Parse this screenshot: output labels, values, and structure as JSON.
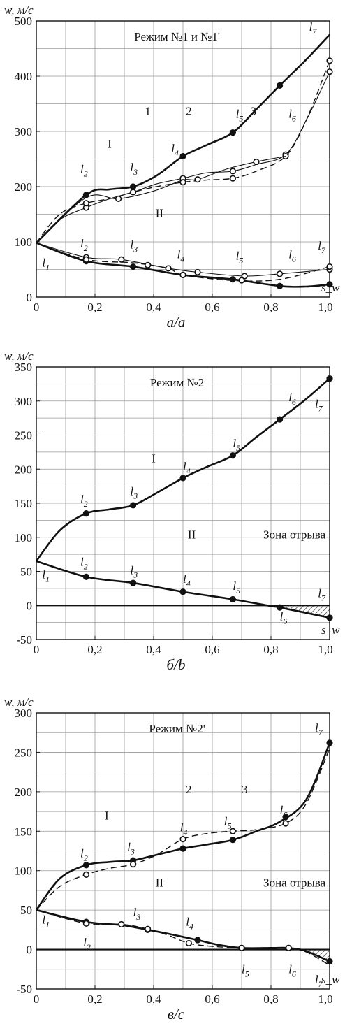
{
  "chart_data": [
    {
      "type": "line",
      "caption": "а/a",
      "mode_label": "Режим №1 и №1'",
      "ylabel": "w, м/с",
      "xlabel": "s_w",
      "xlim": [
        0,
        1.0
      ],
      "ylim": [
        0,
        500
      ],
      "xticks": [
        "0",
        "0,2",
        "0,4",
        "0,6",
        "0,8",
        "1,0"
      ],
      "yticks": [
        "0",
        "100",
        "200",
        "300",
        "400",
        "500"
      ],
      "xtick_values": [
        0,
        0.2,
        0.4,
        0.6,
        0.8,
        1.0
      ],
      "ytick_values": [
        0,
        100,
        200,
        300,
        400,
        500
      ],
      "grid": true,
      "series": [
        {
          "name": "I",
          "style": "solid-thick",
          "x": [
            0,
            0.17,
            0.25,
            0.33,
            0.41,
            0.5,
            0.58,
            0.67,
            0.75,
            0.83,
            0.92,
            1.0
          ],
          "y": [
            98,
            185,
            195,
            200,
            220,
            255,
            275,
            298,
            340,
            383,
            430,
            475
          ],
          "markers": [
            0.17,
            0.33,
            0.5,
            0.67,
            0.83
          ]
        },
        {
          "name": "1",
          "style": "solid-thin",
          "x": [
            0,
            0.08,
            0.17,
            0.25,
            0.33,
            0.41,
            0.5,
            0.58,
            0.67,
            0.75,
            0.85,
            0.92,
            1.0
          ],
          "y": [
            98,
            140,
            162,
            178,
            190,
            205,
            215,
            225,
            228,
            240,
            258,
            320,
            408
          ],
          "markers": [
            0.17,
            0.33,
            0.5,
            0.67,
            0.85,
            1.0
          ]
        },
        {
          "name": "2",
          "style": "dashed",
          "x": [
            0,
            0.08,
            0.17,
            0.25,
            0.33,
            0.41,
            0.5,
            0.58,
            0.67,
            0.75,
            0.85,
            0.92,
            1.0
          ],
          "y": [
            98,
            150,
            170,
            178,
            190,
            200,
            208,
            212,
            215,
            228,
            255,
            320,
            428
          ],
          "markers": [
            0.17,
            0.33,
            0.5,
            0.67,
            0.85,
            1.0
          ]
        },
        {
          "name": "3",
          "style": "solid-thin",
          "x": [
            0,
            0.17,
            0.28,
            0.4,
            0.5,
            0.55,
            0.65,
            0.75,
            0.85
          ],
          "y": [
            98,
            180,
            178,
            192,
            212,
            213,
            232,
            245,
            255
          ],
          "markers": [
            0.28,
            0.55,
            0.75
          ]
        },
        {
          "name": "II",
          "style": "solid-thick",
          "x": [
            0,
            0.17,
            0.33,
            0.5,
            0.67,
            0.83,
            0.92,
            1.0
          ],
          "y": [
            98,
            65,
            55,
            40,
            32,
            20,
            19,
            23
          ],
          "markers": [
            0.17,
            0.33,
            0.5,
            0.67,
            0.83,
            1.0
          ]
        },
        {
          "name": "II-thin",
          "style": "solid-thin",
          "x": [
            0,
            0.17,
            0.29,
            0.45,
            0.55,
            0.71,
            0.83,
            1.0
          ],
          "y": [
            98,
            72,
            68,
            52,
            45,
            38,
            42,
            50
          ],
          "markers": [
            0.17,
            0.29,
            0.45,
            0.55,
            0.71,
            0.83,
            1.0
          ]
        },
        {
          "name": "II-dash",
          "style": "dashed",
          "x": [
            0,
            0.17,
            0.33,
            0.45,
            0.5,
            0.67,
            0.83,
            1.0
          ],
          "y": [
            98,
            68,
            62,
            52,
            40,
            30,
            32,
            55
          ],
          "markers": [
            0.17,
            0.38,
            0.5,
            0.7,
            1.0
          ]
        }
      ],
      "annotations": [
        {
          "text": "I",
          "x": 0.25,
          "y": 270
        },
        {
          "text": "1",
          "x": 0.38,
          "y": 330
        },
        {
          "text": "2",
          "x": 0.52,
          "y": 330
        },
        {
          "text": "3",
          "x": 0.74,
          "y": 330
        },
        {
          "text": "II",
          "x": 0.42,
          "y": 145
        }
      ],
      "point_labels": [
        {
          "sym": "l",
          "sub": "1",
          "x": 0.02,
          "y": 55
        },
        {
          "sym": "l",
          "sub": "2",
          "x": 0.15,
          "y": 225
        },
        {
          "sym": "l",
          "sub": "3",
          "x": 0.32,
          "y": 228
        },
        {
          "sym": "l",
          "sub": "4",
          "x": 0.46,
          "y": 262
        },
        {
          "sym": "l",
          "sub": "5",
          "x": 0.68,
          "y": 325
        },
        {
          "sym": "l",
          "sub": "6",
          "x": 0.86,
          "y": 325
        },
        {
          "sym": "l",
          "sub": "7",
          "x": 0.93,
          "y": 482
        },
        {
          "sym": "l",
          "sub": "2",
          "x": 0.15,
          "y": 90
        },
        {
          "sym": "l",
          "sub": "3",
          "x": 0.32,
          "y": 88
        },
        {
          "sym": "l",
          "sub": "4",
          "x": 0.48,
          "y": 70
        },
        {
          "sym": "l",
          "sub": "5",
          "x": 0.68,
          "y": 68
        },
        {
          "sym": "l",
          "sub": "6",
          "x": 0.86,
          "y": 70
        },
        {
          "sym": "l",
          "sub": "7",
          "x": 0.96,
          "y": 86
        }
      ]
    },
    {
      "type": "line",
      "caption": "б/b",
      "mode_label": "Режим №2",
      "ylabel": "w, м/с",
      "xlabel": "s_w",
      "xlim": [
        0,
        1.0
      ],
      "ylim": [
        -50,
        350
      ],
      "xticks": [
        "0",
        "0,2",
        "0,4",
        "0,6",
        "0,8",
        "1,0"
      ],
      "yticks": [
        "-50",
        "0",
        "50",
        "100",
        "150",
        "200",
        "250",
        "300",
        "350"
      ],
      "xtick_values": [
        0,
        0.2,
        0.4,
        0.6,
        0.8,
        1.0
      ],
      "ytick_values": [
        -50,
        0,
        50,
        100,
        150,
        200,
        250,
        300,
        350
      ],
      "grid": true,
      "separation_zone": {
        "label": "Зона отрыва",
        "from": 0.8,
        "to": 1.0
      },
      "series": [
        {
          "name": "I",
          "style": "solid-thick",
          "x": [
            0,
            0.08,
            0.17,
            0.25,
            0.33,
            0.41,
            0.5,
            0.58,
            0.67,
            0.75,
            0.83,
            0.92,
            1.0
          ],
          "y": [
            65,
            110,
            135,
            141,
            147,
            165,
            187,
            203,
            220,
            247,
            273,
            303,
            333
          ],
          "markers": [
            0.17,
            0.33,
            0.5,
            0.67,
            0.83,
            1.0
          ]
        },
        {
          "name": "II",
          "style": "solid-thick",
          "x": [
            0,
            0.17,
            0.33,
            0.5,
            0.67,
            0.8,
            0.83,
            1.0
          ],
          "y": [
            65,
            42,
            33,
            20,
            9,
            -1,
            -3,
            -18
          ],
          "markers": [
            0.17,
            0.33,
            0.5,
            0.67,
            0.83,
            1.0
          ]
        }
      ],
      "annotations": [
        {
          "text": "I",
          "x": 0.4,
          "y": 210
        },
        {
          "text": "II",
          "x": 0.53,
          "y": 98
        },
        {
          "text": "Зона отрыва",
          "x": 0.88,
          "y": 98
        }
      ],
      "point_labels": [
        {
          "sym": "l",
          "sub": "1",
          "x": 0.02,
          "y": 40
        },
        {
          "sym": "l",
          "sub": "2",
          "x": 0.15,
          "y": 150
        },
        {
          "sym": "l",
          "sub": "3",
          "x": 0.32,
          "y": 162
        },
        {
          "sym": "l",
          "sub": "4",
          "x": 0.5,
          "y": 198
        },
        {
          "sym": "l",
          "sub": "5",
          "x": 0.67,
          "y": 232
        },
        {
          "sym": "l",
          "sub": "6",
          "x": 0.86,
          "y": 300
        },
        {
          "sym": "l",
          "sub": "7",
          "x": 0.95,
          "y": 290
        },
        {
          "sym": "l",
          "sub": "2",
          "x": 0.15,
          "y": 58
        },
        {
          "sym": "l",
          "sub": "3",
          "x": 0.32,
          "y": 46
        },
        {
          "sym": "l",
          "sub": "4",
          "x": 0.5,
          "y": 33
        },
        {
          "sym": "l",
          "sub": "5",
          "x": 0.67,
          "y": 23
        },
        {
          "sym": "l",
          "sub": "6",
          "x": 0.83,
          "y": -22
        },
        {
          "sym": "l",
          "sub": "7",
          "x": 0.96,
          "y": 12
        }
      ]
    },
    {
      "type": "line",
      "caption": "в/c",
      "mode_label": "Режим №2'",
      "ylabel": "w, м/с",
      "xlabel": "s_w",
      "xlim": [
        0,
        1.0
      ],
      "ylim": [
        -50,
        300
      ],
      "xticks": [
        "0",
        "0,2",
        "0,4",
        "0,6",
        "0,8",
        "1,0"
      ],
      "yticks": [
        "-50",
        "0",
        "50",
        "100",
        "150",
        "200",
        "250",
        "300"
      ],
      "xtick_values": [
        0,
        0.2,
        0.4,
        0.6,
        0.8,
        1.0
      ],
      "ytick_values": [
        -50,
        0,
        50,
        100,
        150,
        200,
        250,
        300
      ],
      "grid": true,
      "separation_zone": {
        "label": "Зона отрыва",
        "from": 0.86,
        "to": 1.0
      },
      "series": [
        {
          "name": "I",
          "style": "solid-thick",
          "x": [
            0,
            0.08,
            0.17,
            0.25,
            0.33,
            0.41,
            0.5,
            0.58,
            0.67,
            0.75,
            0.83,
            0.92,
            1.0
          ],
          "y": [
            50,
            90,
            107,
            111,
            113,
            120,
            128,
            133,
            139,
            150,
            162,
            190,
            262
          ],
          "markers": [
            0.17,
            0.33,
            0.5,
            0.67,
            0.85,
            1.0
          ]
        },
        {
          "name": "I-dash",
          "style": "dashed",
          "x": [
            0,
            0.08,
            0.17,
            0.25,
            0.33,
            0.41,
            0.5,
            0.58,
            0.67,
            0.75,
            0.85,
            0.92,
            1.0
          ],
          "y": [
            50,
            80,
            95,
            103,
            108,
            120,
            140,
            147,
            150,
            152,
            160,
            185,
            255
          ],
          "markers": [
            0.17,
            0.33,
            0.5,
            0.67,
            0.85
          ]
        },
        {
          "name": "II",
          "style": "solid-thick",
          "x": [
            0,
            0.17,
            0.29,
            0.38,
            0.45,
            0.55,
            0.62,
            0.7,
            0.8,
            0.86,
            0.92,
            1.0
          ],
          "y": [
            50,
            35,
            31,
            25,
            20,
            12,
            6,
            2,
            2,
            2,
            -2,
            -15
          ],
          "markers": [
            0.17,
            0.38,
            0.55,
            0.7,
            0.86,
            1.0
          ]
        },
        {
          "name": "II-dash",
          "style": "dashed",
          "x": [
            0,
            0.17,
            0.29,
            0.38,
            0.45,
            0.52,
            0.6,
            0.7,
            0.8,
            0.86,
            0.92,
            1.0
          ],
          "y": [
            50,
            33,
            32,
            26,
            18,
            8,
            4,
            2,
            2,
            2,
            -3,
            -20
          ],
          "markers": [
            0.17,
            0.29,
            0.38,
            0.52,
            0.7,
            0.86
          ]
        }
      ],
      "annotations": [
        {
          "text": "I",
          "x": 0.24,
          "y": 165
        },
        {
          "text": "2",
          "x": 0.52,
          "y": 198
        },
        {
          "text": "3",
          "x": 0.71,
          "y": 198
        },
        {
          "text": "II",
          "x": 0.42,
          "y": 80
        },
        {
          "text": "Зона отрыва",
          "x": 0.88,
          "y": 80
        }
      ],
      "point_labels": [
        {
          "sym": "l",
          "sub": "1",
          "x": 0.02,
          "y": 33
        },
        {
          "sym": "l",
          "sub": "2",
          "x": 0.15,
          "y": 117
        },
        {
          "sym": "l",
          "sub": "3",
          "x": 0.31,
          "y": 125
        },
        {
          "sym": "l",
          "sub": "4",
          "x": 0.49,
          "y": 150
        },
        {
          "sym": "l",
          "sub": "5",
          "x": 0.64,
          "y": 158
        },
        {
          "sym": "l",
          "sub": "6",
          "x": 0.83,
          "y": 172
        },
        {
          "sym": "l",
          "sub": "7",
          "x": 0.95,
          "y": 276
        },
        {
          "sym": "l",
          "sub": "2",
          "x": 0.16,
          "y": 4
        },
        {
          "sym": "l",
          "sub": "3",
          "x": 0.33,
          "y": 42
        },
        {
          "sym": "l",
          "sub": "4",
          "x": 0.51,
          "y": 30
        },
        {
          "sym": "l",
          "sub": "5",
          "x": 0.7,
          "y": -30
        },
        {
          "sym": "l",
          "sub": "6",
          "x": 0.86,
          "y": -30
        },
        {
          "sym": "l",
          "sub": "7",
          "x": 0.95,
          "y": -43
        }
      ]
    }
  ]
}
